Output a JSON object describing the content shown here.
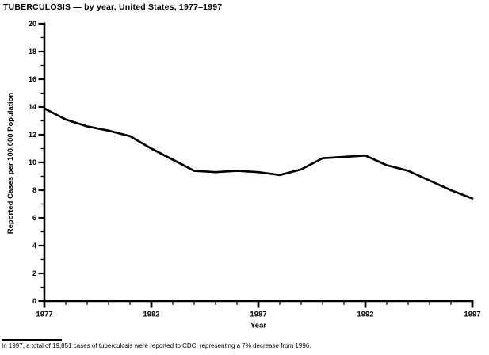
{
  "page": {
    "title": "TUBERCULOSIS — by year, United States, 1977–1997",
    "footnote": "In 1997, a total of 19,851 cases of tuberculosis were reported to CDC, representing a 7% decrease from 1996."
  },
  "chart_data": {
    "type": "line",
    "title": "TUBERCULOSIS — by year, United States, 1977–1997",
    "x": [
      1977,
      1978,
      1979,
      1980,
      1981,
      1982,
      1983,
      1984,
      1985,
      1986,
      1987,
      1988,
      1989,
      1990,
      1991,
      1992,
      1993,
      1994,
      1995,
      1996,
      1997
    ],
    "values": [
      13.9,
      13.1,
      12.6,
      12.3,
      11.9,
      11.0,
      10.2,
      9.4,
      9.3,
      9.4,
      9.3,
      9.1,
      9.5,
      10.3,
      10.4,
      10.5,
      9.8,
      9.4,
      8.7,
      8.0,
      7.4
    ],
    "xlabel": "Year",
    "ylabel": "Reported Cases per 100,000 Population",
    "xlim": [
      1977,
      1997
    ],
    "ylim": [
      0,
      20
    ],
    "xticks_major": [
      1977,
      1982,
      1987,
      1992,
      1997
    ],
    "xtick_minor_step": 1,
    "ytick_major_step": 2,
    "ytick_minor_step": 1,
    "grid": false,
    "legend": false,
    "line_color": "#000000",
    "axis_color": "#000000",
    "background_color": "#ffffff"
  }
}
